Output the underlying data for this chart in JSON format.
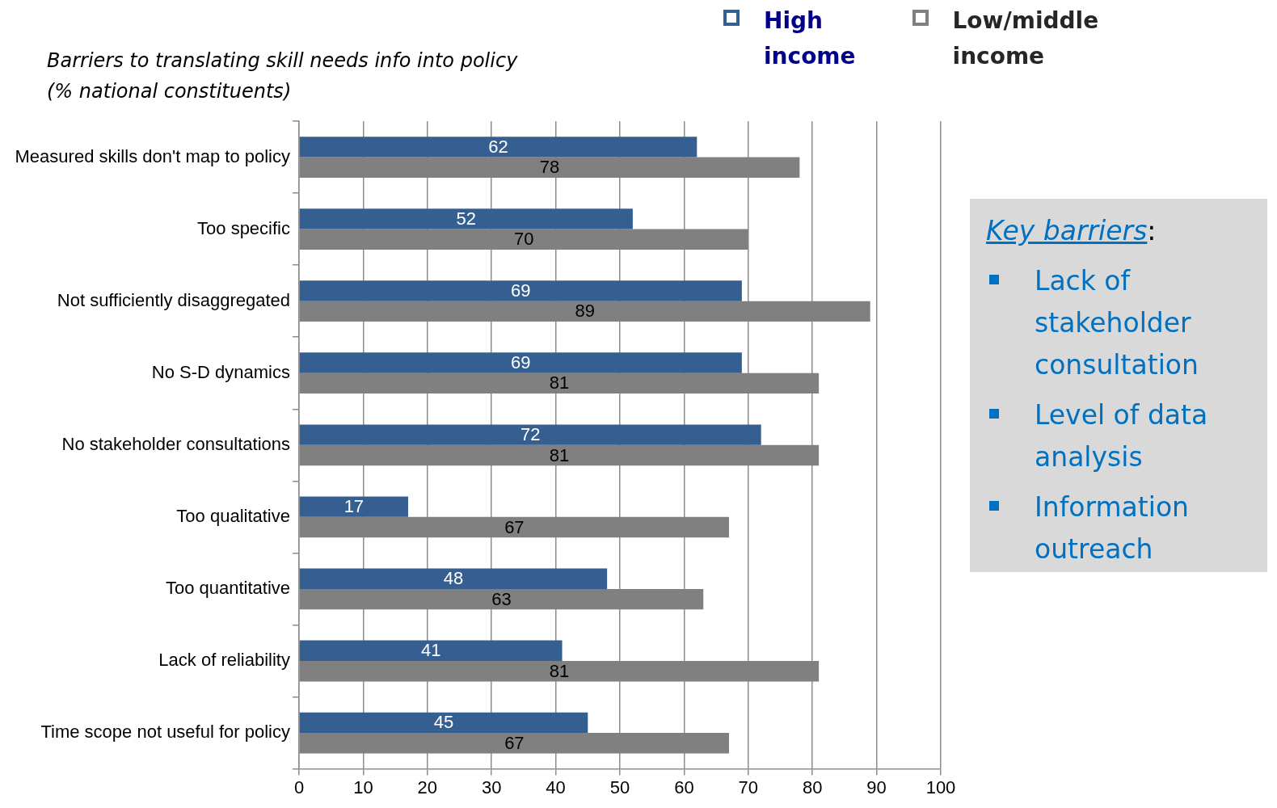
{
  "chart_data": {
    "type": "bar",
    "orientation": "horizontal",
    "title": "Barriers to translating skill needs info into policy",
    "subtitle": "(% national constituents)",
    "categories": [
      "Measured skills don't map to policy",
      "Too specific",
      "Not sufficiently disaggregated",
      "No S-D dynamics",
      "No stakeholder consultations",
      "Too qualitative",
      "Too quantitative",
      "Lack of reliability",
      "Time scope not useful for policy"
    ],
    "series": [
      {
        "name": "High income",
        "color": "#365f91",
        "values": [
          62,
          52,
          69,
          69,
          72,
          17,
          48,
          41,
          45
        ]
      },
      {
        "name": "Low/middle income",
        "color": "#808080",
        "values": [
          78,
          70,
          89,
          81,
          81,
          67,
          63,
          81,
          67
        ]
      }
    ],
    "xlim": [
      0,
      100
    ],
    "xticks": [
      0,
      10,
      20,
      30,
      40,
      50,
      60,
      70,
      80,
      90,
      100
    ],
    "grid": "x",
    "legend": "top right",
    "data_labels": true,
    "annotations": [
      "Key barriers:",
      "Lack of stakeholder consultation",
      "Level of data analysis",
      "Information outreach"
    ]
  }
}
